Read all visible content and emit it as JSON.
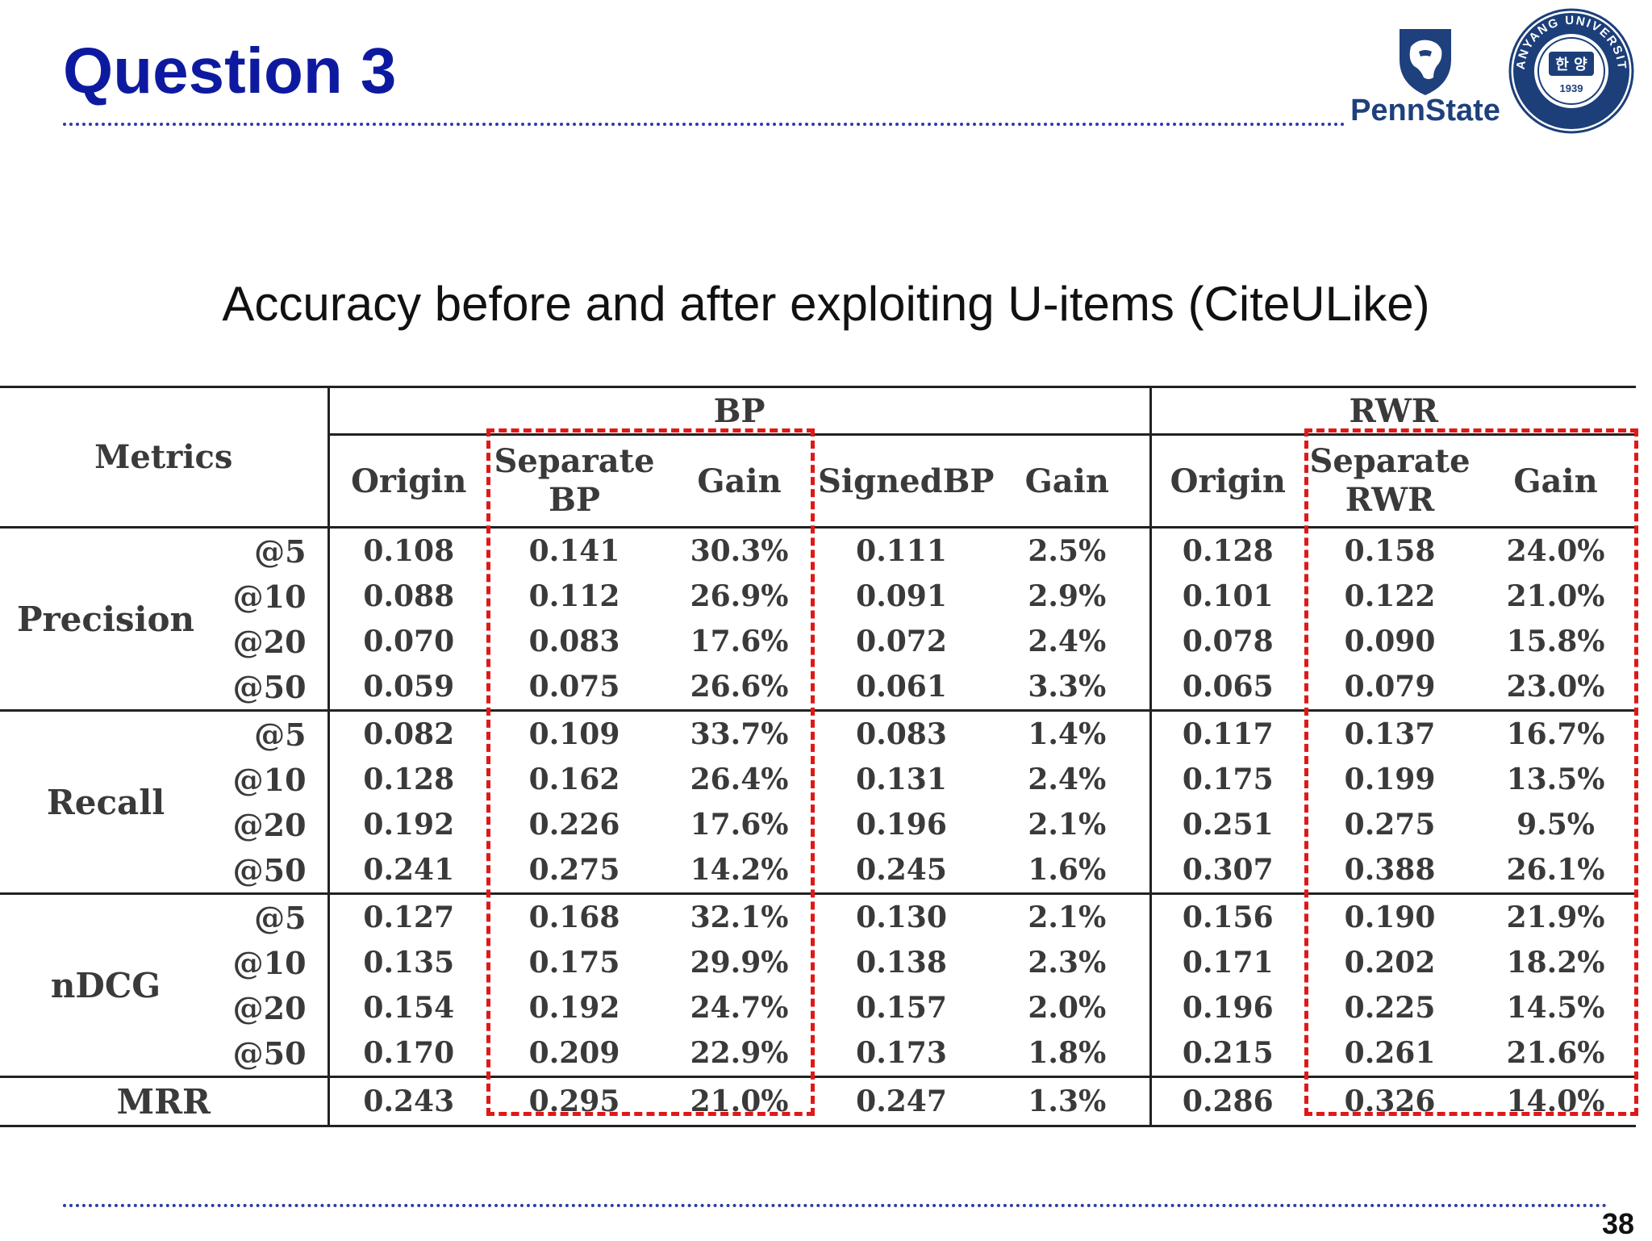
{
  "slide": {
    "title": "Question 3",
    "caption": "Accuracy before and after exploiting U-items (CiteULike)",
    "page_number": "38"
  },
  "logos": {
    "pennstate": {
      "wordmark": "PennState",
      "icon": "nittany-lion-shield-icon",
      "color": "#1e407c"
    },
    "hanyang": {
      "ring_text": "HANYANG UNIVERSITY",
      "center_text": "한 양",
      "year": "1939",
      "icon": "hanyang-university-seal",
      "color": "#1c3f7a"
    }
  },
  "colors": {
    "title": "#0d1aa0",
    "highlight": "#e01818",
    "rule": "#2d3aa8"
  },
  "table": {
    "headers": {
      "metrics": "Metrics",
      "bp": "BP",
      "rwr": "RWR",
      "origin": "Origin",
      "separate": "Separate",
      "bp_short": "BP",
      "rwr_short": "RWR",
      "gain": "Gain",
      "signed_bp": "SignedBP"
    },
    "groups": [
      {
        "metric": "Precision",
        "rows": [
          {
            "k": "@5",
            "bp_origin": "0.108",
            "sep_bp": "0.141",
            "sep_bp_gain": "30.3%",
            "signed_bp": "0.111",
            "signed_bp_gain": "2.5%",
            "rwr_origin": "0.128",
            "sep_rwr": "0.158",
            "sep_rwr_gain": "24.0%"
          },
          {
            "k": "@10",
            "bp_origin": "0.088",
            "sep_bp": "0.112",
            "sep_bp_gain": "26.9%",
            "signed_bp": "0.091",
            "signed_bp_gain": "2.9%",
            "rwr_origin": "0.101",
            "sep_rwr": "0.122",
            "sep_rwr_gain": "21.0%"
          },
          {
            "k": "@20",
            "bp_origin": "0.070",
            "sep_bp": "0.083",
            "sep_bp_gain": "17.6%",
            "signed_bp": "0.072",
            "signed_bp_gain": "2.4%",
            "rwr_origin": "0.078",
            "sep_rwr": "0.090",
            "sep_rwr_gain": "15.8%"
          },
          {
            "k": "@50",
            "bp_origin": "0.059",
            "sep_bp": "0.075",
            "sep_bp_gain": "26.6%",
            "signed_bp": "0.061",
            "signed_bp_gain": "3.3%",
            "rwr_origin": "0.065",
            "sep_rwr": "0.079",
            "sep_rwr_gain": "23.0%"
          }
        ]
      },
      {
        "metric": "Recall",
        "rows": [
          {
            "k": "@5",
            "bp_origin": "0.082",
            "sep_bp": "0.109",
            "sep_bp_gain": "33.7%",
            "signed_bp": "0.083",
            "signed_bp_gain": "1.4%",
            "rwr_origin": "0.117",
            "sep_rwr": "0.137",
            "sep_rwr_gain": "16.7%"
          },
          {
            "k": "@10",
            "bp_origin": "0.128",
            "sep_bp": "0.162",
            "sep_bp_gain": "26.4%",
            "signed_bp": "0.131",
            "signed_bp_gain": "2.4%",
            "rwr_origin": "0.175",
            "sep_rwr": "0.199",
            "sep_rwr_gain": "13.5%"
          },
          {
            "k": "@20",
            "bp_origin": "0.192",
            "sep_bp": "0.226",
            "sep_bp_gain": "17.6%",
            "signed_bp": "0.196",
            "signed_bp_gain": "2.1%",
            "rwr_origin": "0.251",
            "sep_rwr": "0.275",
            "sep_rwr_gain": "9.5%"
          },
          {
            "k": "@50",
            "bp_origin": "0.241",
            "sep_bp": "0.275",
            "sep_bp_gain": "14.2%",
            "signed_bp": "0.245",
            "signed_bp_gain": "1.6%",
            "rwr_origin": "0.307",
            "sep_rwr": "0.388",
            "sep_rwr_gain": "26.1%"
          }
        ]
      },
      {
        "metric": "nDCG",
        "rows": [
          {
            "k": "@5",
            "bp_origin": "0.127",
            "sep_bp": "0.168",
            "sep_bp_gain": "32.1%",
            "signed_bp": "0.130",
            "signed_bp_gain": "2.1%",
            "rwr_origin": "0.156",
            "sep_rwr": "0.190",
            "sep_rwr_gain": "21.9%"
          },
          {
            "k": "@10",
            "bp_origin": "0.135",
            "sep_bp": "0.175",
            "sep_bp_gain": "29.9%",
            "signed_bp": "0.138",
            "signed_bp_gain": "2.3%",
            "rwr_origin": "0.171",
            "sep_rwr": "0.202",
            "sep_rwr_gain": "18.2%"
          },
          {
            "k": "@20",
            "bp_origin": "0.154",
            "sep_bp": "0.192",
            "sep_bp_gain": "24.7%",
            "signed_bp": "0.157",
            "signed_bp_gain": "2.0%",
            "rwr_origin": "0.196",
            "sep_rwr": "0.225",
            "sep_rwr_gain": "14.5%"
          },
          {
            "k": "@50",
            "bp_origin": "0.170",
            "sep_bp": "0.209",
            "sep_bp_gain": "22.9%",
            "signed_bp": "0.173",
            "signed_bp_gain": "1.8%",
            "rwr_origin": "0.215",
            "sep_rwr": "0.261",
            "sep_rwr_gain": "21.6%"
          }
        ]
      }
    ],
    "mrr": {
      "metric": "MRR",
      "bp_origin": "0.243",
      "sep_bp": "0.295",
      "sep_bp_gain": "21.0%",
      "signed_bp": "0.247",
      "signed_bp_gain": "1.3%",
      "rwr_origin": "0.286",
      "sep_rwr": "0.326",
      "sep_rwr_gain": "14.0%"
    }
  }
}
